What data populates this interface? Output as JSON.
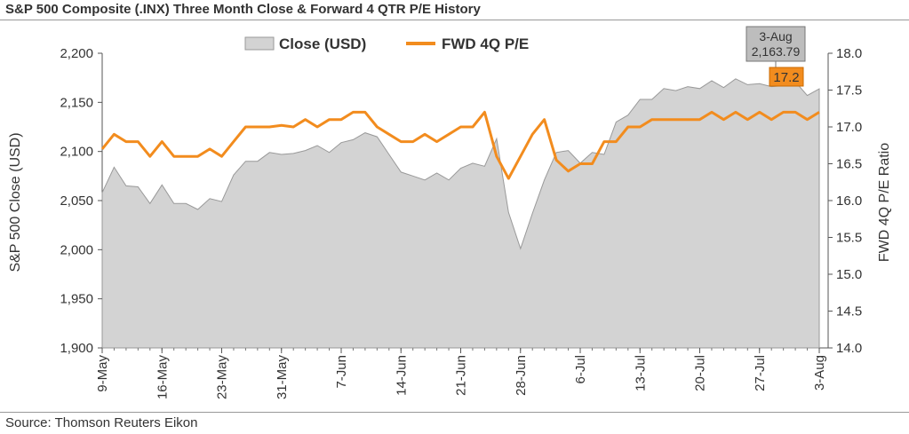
{
  "title": "S&P 500 Composite (.INX) Three Month Close & Forward 4 QTR P/E History",
  "source": "Source: Thomson Reuters Eikon",
  "chart_data": {
    "type": "area+line",
    "x_tick_labels": [
      "9-May",
      "16-May",
      "23-May",
      "31-May",
      "7-Jun",
      "14-Jun",
      "21-Jun",
      "28-Jun",
      "6-Jul",
      "13-Jul",
      "20-Jul",
      "27-Jul",
      "3-Aug"
    ],
    "x_tick_index": [
      0,
      5,
      10,
      15,
      20,
      25,
      30,
      35,
      40,
      45,
      50,
      55,
      60
    ],
    "legend": {
      "position": "top",
      "close_label": "Close (USD)",
      "pe_label": "FWD 4Q P/E"
    },
    "left_axis": {
      "label": "S&P 500 Close (USD)",
      "min": 1900,
      "max": 2200,
      "ticks": [
        "1,900",
        "1,950",
        "2,000",
        "2,050",
        "2,100",
        "2,150",
        "2,200"
      ],
      "tick_values": [
        1900,
        1950,
        2000,
        2050,
        2100,
        2150,
        2200
      ]
    },
    "right_axis": {
      "label": "FWD 4Q P/E Ratio",
      "min": 14.0,
      "max": 18.0,
      "ticks": [
        "14.0",
        "14.5",
        "15.0",
        "15.5",
        "16.0",
        "16.5",
        "17.0",
        "17.5",
        "18.0"
      ],
      "tick_values": [
        14,
        14.5,
        15,
        15.5,
        16,
        16.5,
        17,
        17.5,
        18
      ]
    },
    "series": [
      {
        "name": "Close (USD)",
        "type": "area",
        "axis": "left",
        "color": "#d3d3d3",
        "stroke": "#999999",
        "values": [
          2058,
          2084,
          2065,
          2064,
          2047,
          2066,
          2047,
          2047,
          2041,
          2052,
          2049,
          2076,
          2090,
          2090,
          2099,
          2097,
          2098,
          2101,
          2106,
          2099,
          2109,
          2112,
          2119,
          2115,
          2097,
          2079,
          2075,
          2071,
          2078,
          2071,
          2083,
          2088,
          2085,
          2113,
          2038,
          2001,
          2037,
          2071,
          2099,
          2101,
          2088,
          2099,
          2097,
          2130,
          2137,
          2153,
          2153,
          2164,
          2162,
          2166,
          2164,
          2172,
          2165,
          2174,
          2168,
          2169,
          2166,
          2167,
          2171,
          2157,
          2163.79
        ]
      },
      {
        "name": "FWD 4Q P/E",
        "type": "line",
        "axis": "right",
        "color": "#f28c1e",
        "values": [
          16.7,
          16.9,
          16.8,
          16.8,
          16.6,
          16.8,
          16.6,
          16.6,
          16.6,
          16.7,
          16.6,
          16.8,
          17.0,
          17.0,
          17.0,
          17.02,
          17.0,
          17.1,
          17.0,
          17.1,
          17.1,
          17.2,
          17.2,
          17.0,
          16.9,
          16.8,
          16.8,
          16.9,
          16.8,
          16.9,
          17.0,
          17.0,
          17.2,
          16.6,
          16.3,
          16.6,
          16.9,
          17.1,
          16.55,
          16.4,
          16.5,
          16.5,
          16.8,
          16.8,
          17.0,
          17.0,
          17.1,
          17.1,
          17.1,
          17.1,
          17.1,
          17.2,
          17.1,
          17.2,
          17.1,
          17.2,
          17.1,
          17.2,
          17.2,
          17.1,
          17.2
        ]
      }
    ],
    "callout": {
      "date": "3-Aug",
      "close": "2,163.79",
      "pe": "17.2"
    },
    "colors": {
      "area_fill": "#d3d3d3",
      "area_stroke": "#999999",
      "line": "#f28c1e",
      "callout_box": "#bdbdbd"
    }
  }
}
